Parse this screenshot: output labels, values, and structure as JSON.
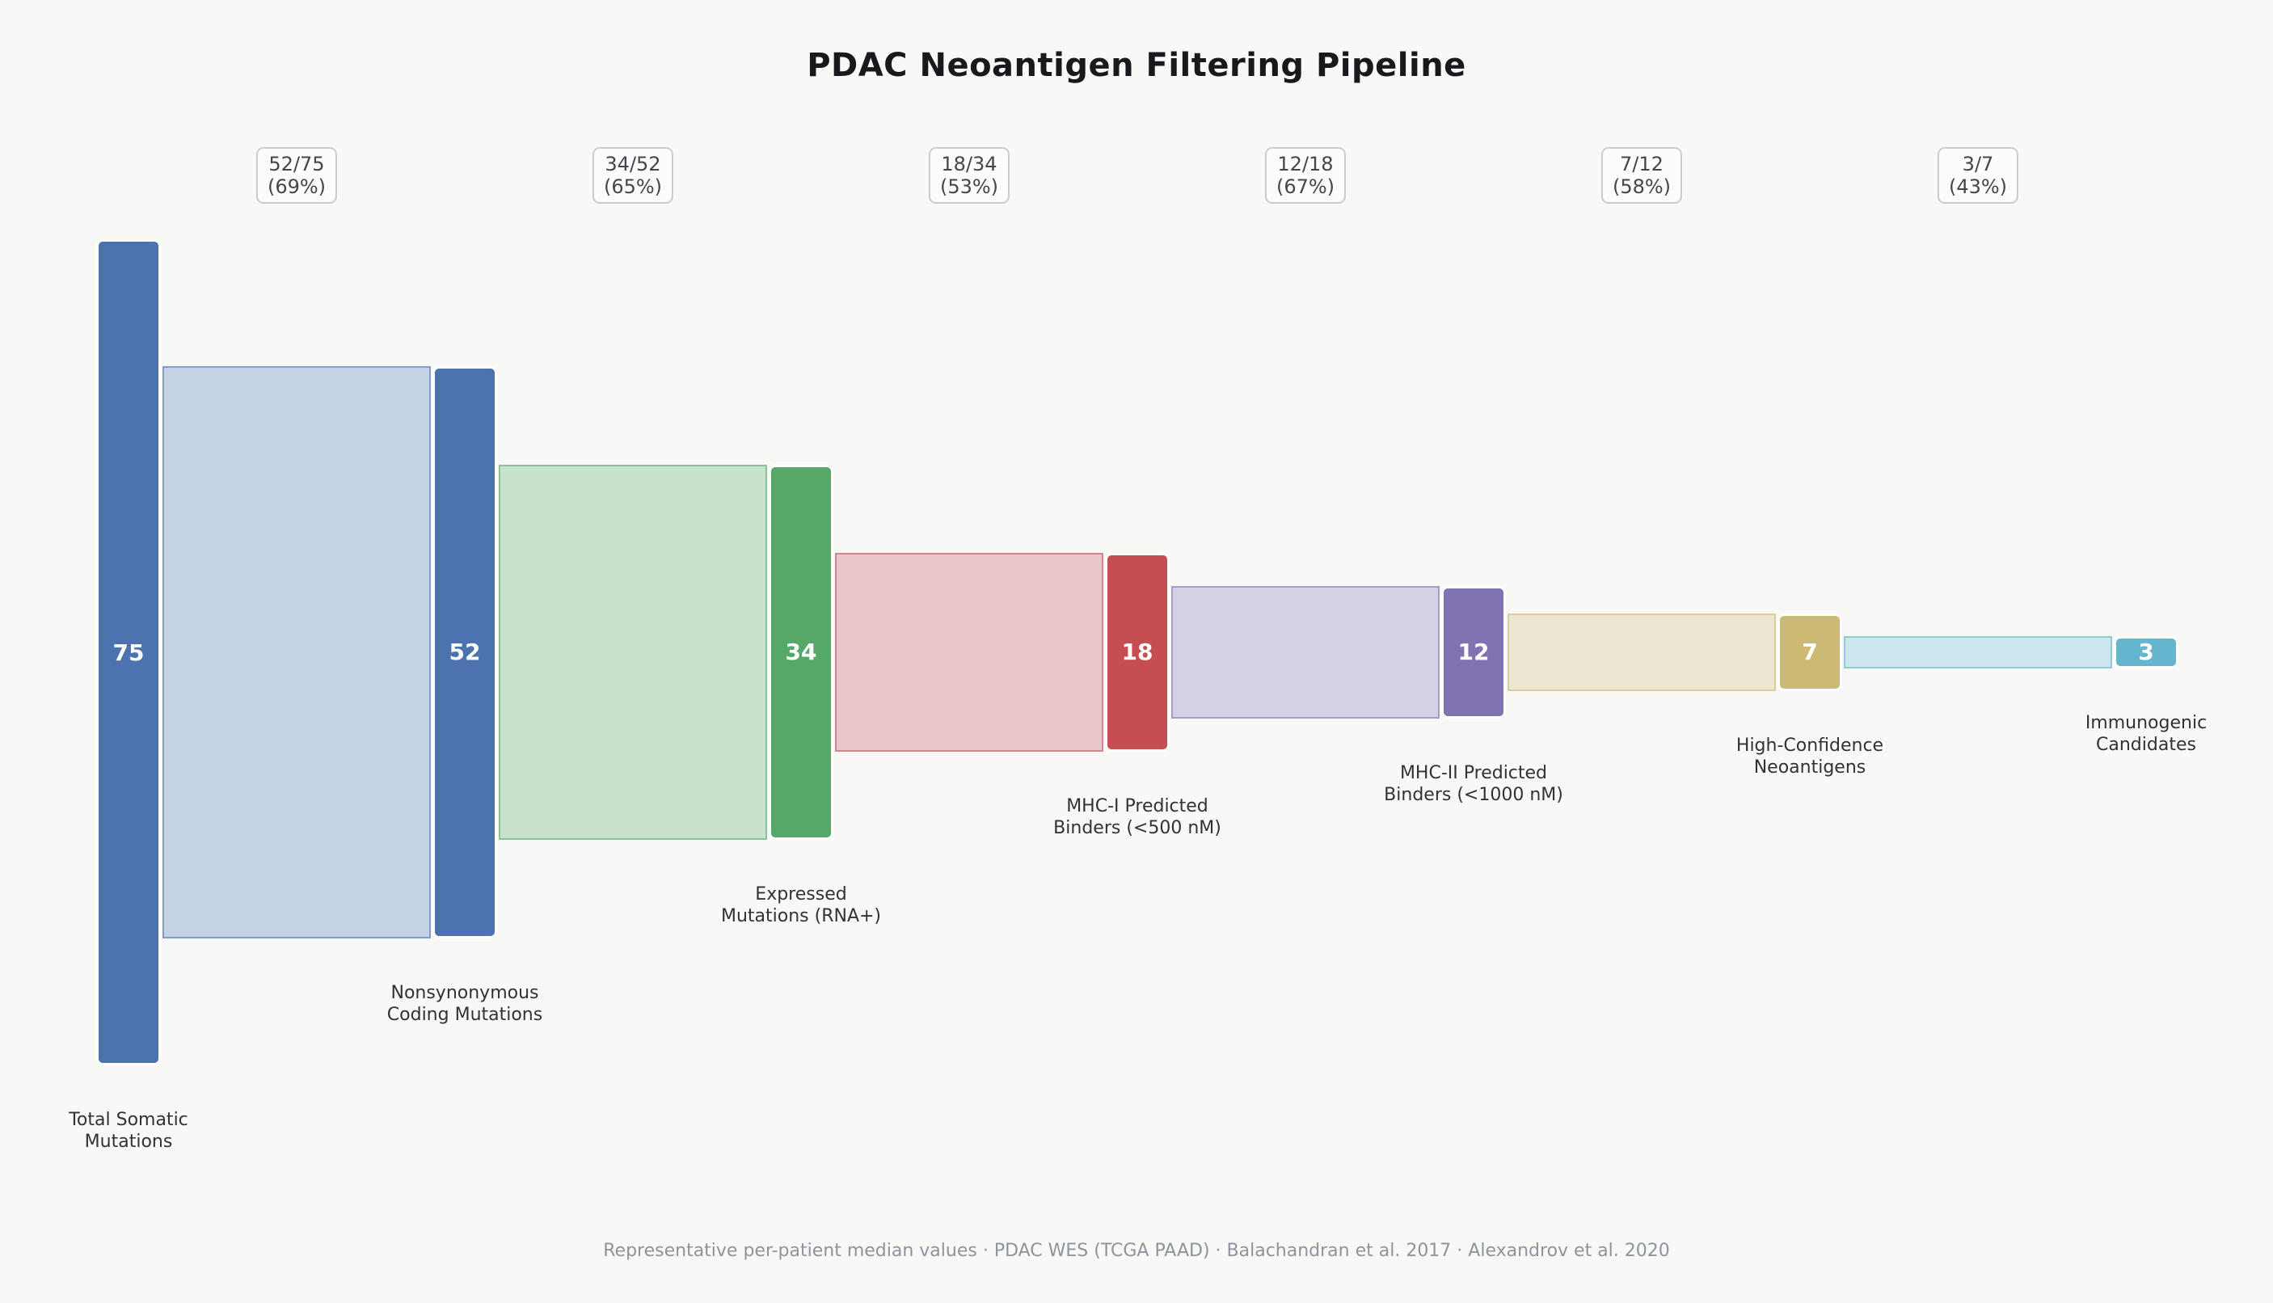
{
  "title": "PDAC Neoantigen Filtering Pipeline",
  "footer": "Representative per-patient median values · PDAC WES (TCGA PAAD) · Balachandran et al. 2017 · Alexandrov et al. 2020",
  "colors": {
    "background": "#f8f8f7",
    "title_text": "#17191c",
    "label_text": "#2f3237",
    "badge_text": "#43474d",
    "badge_border": "#c9ccd2",
    "badge_background": "#fcfcfd",
    "bar_value_text": "#ffffff",
    "footer_text": "#8e939c"
  },
  "chart_data": {
    "type": "funnel",
    "title": "PDAC Neoantigen Filtering Pipeline",
    "orientation": "horizontal",
    "value_max": 75,
    "note": "Representative per-patient median values · PDAC WES (TCGA PAAD) · Balachandran et al. 2017 · Alexandrov et al. 2020",
    "stages": [
      {
        "label": "Total Somatic Mutations",
        "label_lines": [
          "Total Somatic",
          "Mutations"
        ],
        "value": 75,
        "color": "#4C72B0",
        "light_color": null
      },
      {
        "label": "Nonsynonymous Coding Mutations",
        "label_lines": [
          "Nonsynonymous",
          "Coding Mutations"
        ],
        "value": 52,
        "color": "#4C72B0",
        "light_color": "#C5D1E5"
      },
      {
        "label": "Expressed Mutations (RNA+)",
        "label_lines": [
          "Expressed",
          "Mutations (RNA+)"
        ],
        "value": 34,
        "color": "#55A868",
        "light_color": "#C9E2CE"
      },
      {
        "label": "MHC-I Predicted Binders (<500 nM)",
        "label_lines": [
          "MHC-I Predicted",
          "Binders (<500 nM)"
        ],
        "value": 18,
        "color": "#C44E52",
        "light_color": "#E9C6C9"
      },
      {
        "label": "MHC-II Predicted Binders (<1000 nM)",
        "label_lines": [
          "MHC-II Predicted",
          "Binders (<1000 nM)"
        ],
        "value": 12,
        "color": "#8172B2",
        "light_color": "#D5D1E5"
      },
      {
        "label": "High-Confidence Neoantigens",
        "label_lines": [
          "High-Confidence",
          "Neoantigens"
        ],
        "value": 7,
        "color": "#CCB974",
        "light_color": "#ECE6D1"
      },
      {
        "label": "Immunogenic Candidates",
        "label_lines": [
          "Immunogenic",
          "Candidates"
        ],
        "value": 3,
        "color": "#64B5CD",
        "light_color": "#CDE5EC"
      }
    ],
    "transitions": [
      {
        "ratio": "52/75",
        "percent": "(69%)"
      },
      {
        "ratio": "34/52",
        "percent": "(65%)"
      },
      {
        "ratio": "18/34",
        "percent": "(53%)"
      },
      {
        "ratio": "12/18",
        "percent": "(67%)"
      },
      {
        "ratio": "7/12",
        "percent": "(58%)"
      },
      {
        "ratio": "3/7",
        "percent": "(43%)"
      }
    ]
  }
}
